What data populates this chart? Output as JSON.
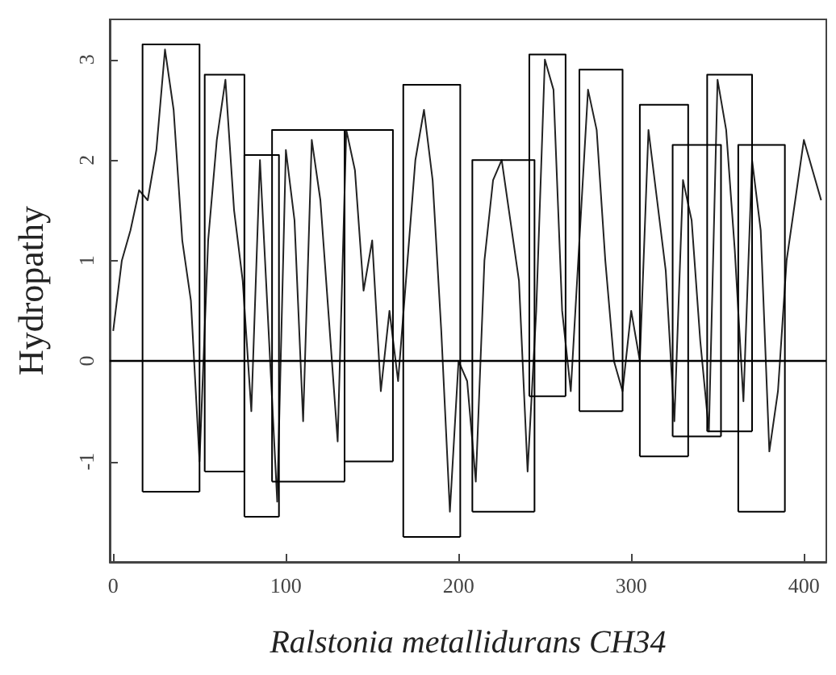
{
  "chart_data": {
    "type": "line",
    "xlabel": "Ralstonia metallidurans CH34",
    "ylabel": "Hydropathy",
    "xlim": [
      -2,
      413
    ],
    "xticks": [
      0,
      100,
      200,
      300,
      400
    ],
    "ylim": [
      -2,
      3.4
    ],
    "yticks": [
      -1,
      0,
      1,
      2,
      3
    ],
    "marker": "none",
    "line_style": "solid",
    "ref_lines": [
      {
        "axis": "y",
        "value": 0,
        "color": "#000000"
      }
    ],
    "series": [
      {
        "color": "#222222",
        "x": [
          0,
          5,
          10,
          15,
          20,
          25,
          30,
          35,
          40,
          45,
          50,
          55,
          60,
          65,
          70,
          75,
          80,
          85,
          90,
          95,
          100,
          105,
          110,
          115,
          120,
          125,
          130,
          135,
          140,
          145,
          150,
          155,
          160,
          165,
          170,
          175,
          180,
          185,
          190,
          195,
          200,
          205,
          210,
          215,
          220,
          225,
          230,
          235,
          240,
          245,
          250,
          255,
          260,
          265,
          270,
          275,
          280,
          285,
          290,
          295,
          300,
          305,
          310,
          315,
          320,
          325,
          330,
          335,
          340,
          345,
          350,
          355,
          360,
          365,
          370,
          375,
          380,
          385,
          390,
          395,
          400,
          405,
          410
        ],
        "values": [
          0.3,
          1.0,
          1.3,
          1.7,
          1.6,
          2.1,
          3.1,
          2.5,
          1.2,
          0.6,
          -1.0,
          1.2,
          2.2,
          2.8,
          1.5,
          0.8,
          -0.5,
          2.0,
          0.3,
          -1.4,
          2.1,
          1.4,
          -0.6,
          2.2,
          1.6,
          0.4,
          -0.8,
          2.3,
          1.9,
          0.7,
          1.2,
          -0.3,
          0.5,
          -0.2,
          0.9,
          2.0,
          2.5,
          1.8,
          0.3,
          -1.5,
          0.0,
          -0.2,
          -1.2,
          1.0,
          1.8,
          2.0,
          1.4,
          0.8,
          -1.1,
          0.5,
          3.0,
          2.7,
          0.5,
          -0.3,
          1.2,
          2.7,
          2.3,
          1.0,
          0.0,
          -0.3,
          0.5,
          0.0,
          2.3,
          1.6,
          0.9,
          -0.6,
          1.8,
          1.4,
          0.2,
          -0.7,
          2.8,
          2.3,
          1.1,
          -0.4,
          2.0,
          1.3,
          -0.9,
          -0.3,
          1.0,
          1.6,
          2.2,
          1.9,
          1.6
        ]
      },
      {
        "color": "#000000",
        "x": [
          17,
          17,
          50,
          50
        ],
        "values": [
          -1.3,
          3.15,
          3.15,
          -1.3
        ]
      },
      {
        "color": "#000000",
        "x": [
          17,
          50
        ],
        "values": [
          -1.3,
          -1.3
        ]
      },
      {
        "color": "#000000",
        "x": [
          53,
          53,
          76,
          76
        ],
        "values": [
          -1.1,
          2.85,
          2.85,
          -1.1
        ]
      },
      {
        "color": "#000000",
        "x": [
          53,
          76
        ],
        "values": [
          -1.1,
          -1.1
        ]
      },
      {
        "color": "#000000",
        "x": [
          76,
          76,
          96,
          96
        ],
        "values": [
          -1.55,
          2.05,
          2.05,
          -1.55
        ]
      },
      {
        "color": "#000000",
        "x": [
          76,
          96
        ],
        "values": [
          -1.55,
          -1.55
        ]
      },
      {
        "color": "#000000",
        "x": [
          92,
          92,
          134,
          134
        ],
        "values": [
          -1.2,
          2.3,
          2.3,
          -1.2
        ]
      },
      {
        "color": "#000000",
        "x": [
          92,
          134
        ],
        "values": [
          -1.2,
          -1.2
        ]
      },
      {
        "color": "#000000",
        "x": [
          134,
          134,
          162,
          162
        ],
        "values": [
          -1.0,
          2.3,
          2.3,
          -1.0
        ]
      },
      {
        "color": "#000000",
        "x": [
          134,
          162
        ],
        "values": [
          -1.0,
          -1.0
        ]
      },
      {
        "color": "#000000",
        "x": [
          168,
          168,
          201,
          201
        ],
        "values": [
          -1.75,
          2.75,
          2.75,
          -1.75
        ]
      },
      {
        "color": "#000000",
        "x": [
          168,
          201
        ],
        "values": [
          -1.75,
          -1.75
        ]
      },
      {
        "color": "#000000",
        "x": [
          208,
          208,
          244,
          244
        ],
        "values": [
          -1.5,
          2.0,
          2.0,
          -1.5
        ]
      },
      {
        "color": "#000000",
        "x": [
          208,
          244
        ],
        "values": [
          -1.5,
          -1.5
        ]
      },
      {
        "color": "#000000",
        "x": [
          241,
          241,
          262,
          262
        ],
        "values": [
          -0.35,
          3.05,
          3.05,
          -0.35
        ]
      },
      {
        "color": "#000000",
        "x": [
          241,
          262
        ],
        "values": [
          -0.35,
          -0.35
        ]
      },
      {
        "color": "#000000",
        "x": [
          270,
          270,
          295,
          295
        ],
        "values": [
          -0.5,
          2.9,
          2.9,
          -0.5
        ]
      },
      {
        "color": "#000000",
        "x": [
          270,
          295
        ],
        "values": [
          -0.5,
          -0.5
        ]
      },
      {
        "color": "#000000",
        "x": [
          305,
          305,
          333,
          333
        ],
        "values": [
          -0.95,
          2.55,
          2.55,
          -0.95
        ]
      },
      {
        "color": "#000000",
        "x": [
          305,
          333
        ],
        "values": [
          -0.95,
          -0.95
        ]
      },
      {
        "color": "#000000",
        "x": [
          324,
          324,
          352,
          352
        ],
        "values": [
          -0.75,
          2.15,
          2.15,
          -0.75
        ]
      },
      {
        "color": "#000000",
        "x": [
          324,
          352
        ],
        "values": [
          -0.75,
          -0.75
        ]
      },
      {
        "color": "#000000",
        "x": [
          344,
          344,
          370,
          370
        ],
        "values": [
          -0.7,
          2.85,
          2.85,
          -0.7
        ]
      },
      {
        "color": "#000000",
        "x": [
          344,
          370
        ],
        "values": [
          -0.7,
          -0.7
        ]
      },
      {
        "color": "#000000",
        "x": [
          362,
          362,
          389,
          389
        ],
        "values": [
          -1.5,
          2.15,
          2.15,
          -1.5
        ]
      },
      {
        "color": "#000000",
        "x": [
          362,
          389
        ],
        "values": [
          -1.5,
          -1.5
        ]
      }
    ]
  }
}
